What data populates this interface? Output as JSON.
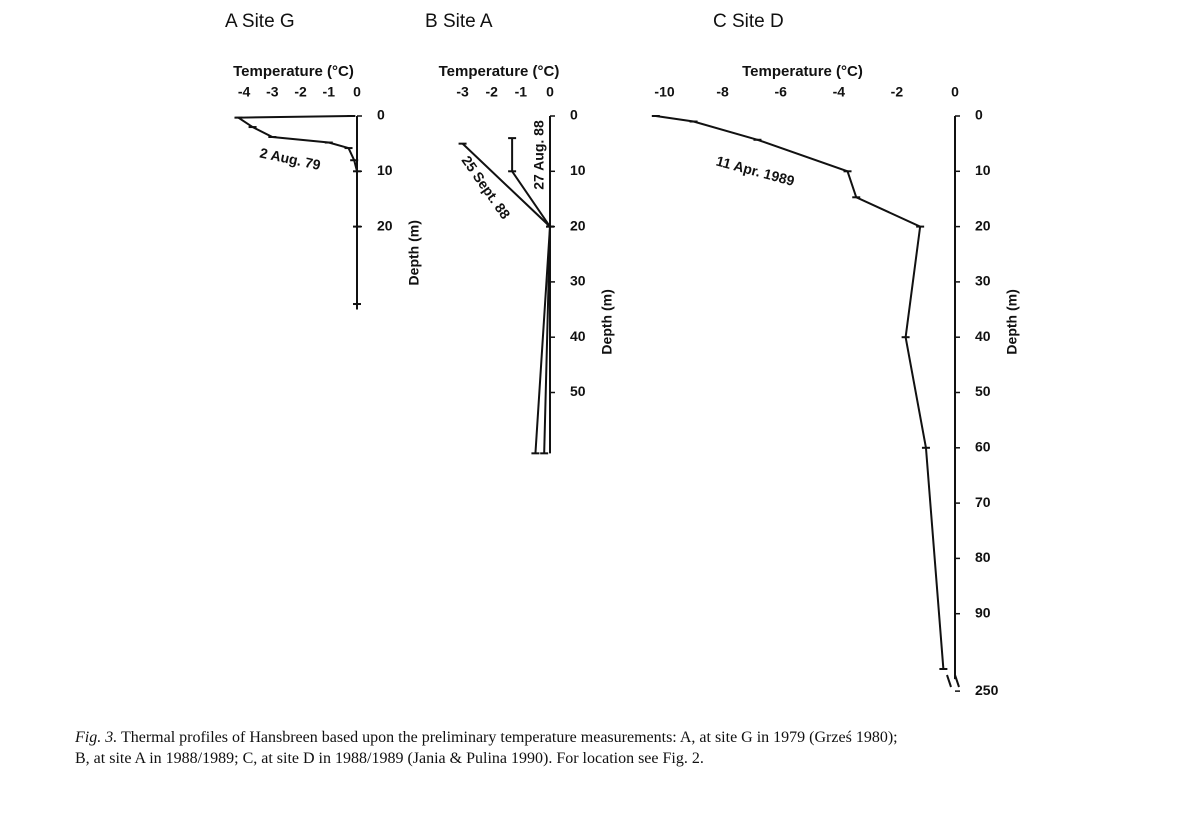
{
  "chart_data": [
    {
      "type": "line",
      "title": "A Site G",
      "xlabel": "Temperature (°C)",
      "ylabel": "Depth (m)",
      "xlim": [
        -4.5,
        0
      ],
      "xticks": [
        -4,
        -3,
        -2,
        -1,
        0
      ],
      "ylim": [
        0,
        35
      ],
      "yticks": [
        0,
        10,
        20
      ],
      "series": [
        {
          "name": "2 Aug. 79",
          "color": "#111111",
          "x": [
            -0.2,
            -4.2,
            -3.7,
            -3.0,
            -1.0,
            -0.3,
            -0.1,
            0,
            0,
            0
          ],
          "values": [
            0,
            0.3,
            2,
            3.8,
            4.8,
            5.8,
            8,
            10,
            20,
            34
          ]
        }
      ]
    },
    {
      "type": "line",
      "title": "B Site A",
      "xlabel": "Temperature (°C)",
      "ylabel": "Depth (m)",
      "xlim": [
        -3.5,
        0
      ],
      "xticks": [
        -3,
        -2,
        -1,
        0
      ],
      "ylim": [
        0,
        61
      ],
      "yticks": [
        0,
        10,
        20,
        30,
        40,
        50
      ],
      "series": [
        {
          "name": "27 Aug. 88",
          "color": "#111111",
          "x": [
            -1.3,
            -1.3,
            0,
            -0.5
          ],
          "values": [
            4,
            10,
            20,
            61
          ]
        },
        {
          "name": "25 Sept. 88",
          "color": "#111111",
          "x": [
            -3.0,
            0,
            -0.2
          ],
          "values": [
            5,
            20,
            61
          ]
        }
      ]
    },
    {
      "type": "line",
      "title": "C Site D",
      "xlabel": "Temperature (°C)",
      "ylabel": "Depth (m)",
      "xlim": [
        -10.5,
        0
      ],
      "xticks": [
        -10,
        -8,
        -6,
        -4,
        -2,
        0
      ],
      "ylim": [
        0,
        250
      ],
      "ybreak": [
        100,
        246
      ],
      "yticks": [
        0,
        10,
        20,
        30,
        40,
        50,
        60,
        70,
        80,
        90,
        250
      ],
      "series": [
        {
          "name": "11 Apr. 1989",
          "color": "#111111",
          "x": [
            -10.3,
            -9.0,
            -6.8,
            -3.7,
            -3.4,
            -1.2,
            -1.7,
            -1.0,
            -0.4
          ],
          "values": [
            0,
            1,
            4.3,
            10,
            14.7,
            20,
            40,
            60,
            100
          ]
        }
      ]
    }
  ],
  "caption": {
    "label": "Fig. 3.",
    "lines": [
      "Thermal profiles of Hansbreen based upon the preliminary temperature measurements: A, at site G in 1979 (Grześ 1980);",
      "B, at site A in 1988/1989; C, at site D in 1988/1989 (Jania & Pulina 1990). For location see Fig. 2."
    ]
  }
}
